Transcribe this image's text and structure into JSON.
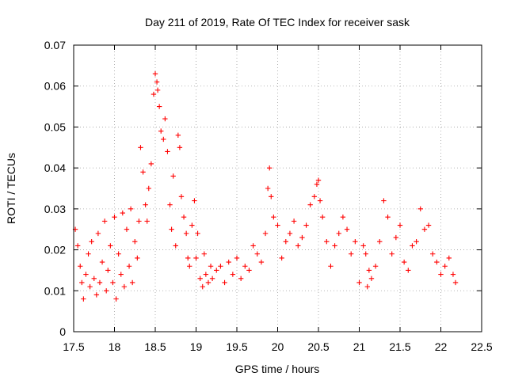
{
  "chart_data": {
    "type": "scatter",
    "title": "Day 211 of 2019, Rate Of TEC Index for receiver sask",
    "xlabel": "GPS time / hours",
    "ylabel": "ROTI / TECUs",
    "xlim": [
      17.5,
      22.5
    ],
    "ylim": [
      0,
      0.07
    ],
    "xticks": [
      "17.5",
      "18",
      "18.5",
      "19",
      "19.5",
      "20",
      "20.5",
      "21",
      "21.5",
      "22",
      "22.5"
    ],
    "yticks": [
      "0",
      "0.01",
      "0.02",
      "0.03",
      "0.04",
      "0.05",
      "0.06",
      "0.07"
    ],
    "grid": true,
    "marker": "+",
    "color": "#ff0000",
    "series": [
      {
        "name": "ROTI",
        "x": [
          17.52,
          17.55,
          17.58,
          17.6,
          17.62,
          17.65,
          17.68,
          17.7,
          17.72,
          17.75,
          17.78,
          17.8,
          17.82,
          17.85,
          17.88,
          17.9,
          17.92,
          17.95,
          17.98,
          18.0,
          18.02,
          18.05,
          18.08,
          18.1,
          18.12,
          18.15,
          18.18,
          18.2,
          18.22,
          18.25,
          18.28,
          18.3,
          18.32,
          18.35,
          18.38,
          18.4,
          18.42,
          18.45,
          18.48,
          18.5,
          18.52,
          18.53,
          18.55,
          18.57,
          18.6,
          18.62,
          18.65,
          18.68,
          18.7,
          18.72,
          18.75,
          18.78,
          18.8,
          18.82,
          18.85,
          18.88,
          18.9,
          18.92,
          18.95,
          18.98,
          19.0,
          19.02,
          19.05,
          19.08,
          19.1,
          19.12,
          19.15,
          19.18,
          19.2,
          19.25,
          19.3,
          19.35,
          19.4,
          19.45,
          19.5,
          19.55,
          19.6,
          19.65,
          19.7,
          19.75,
          19.8,
          19.85,
          19.88,
          19.9,
          19.92,
          19.95,
          20.0,
          20.05,
          20.1,
          20.15,
          20.2,
          20.25,
          20.3,
          20.35,
          20.4,
          20.45,
          20.48,
          20.5,
          20.52,
          20.55,
          20.6,
          20.65,
          20.7,
          20.75,
          20.8,
          20.85,
          20.9,
          20.95,
          21.0,
          21.05,
          21.08,
          21.1,
          21.12,
          21.15,
          21.2,
          21.25,
          21.3,
          21.35,
          21.4,
          21.45,
          21.5,
          21.55,
          21.6,
          21.65,
          21.7,
          21.75,
          21.8,
          21.85,
          21.9,
          21.95,
          22.0,
          22.05,
          22.1,
          22.15,
          22.18
        ],
        "y": [
          0.025,
          0.021,
          0.016,
          0.012,
          0.008,
          0.014,
          0.019,
          0.011,
          0.022,
          0.013,
          0.009,
          0.024,
          0.012,
          0.017,
          0.027,
          0.01,
          0.015,
          0.021,
          0.012,
          0.028,
          0.008,
          0.019,
          0.014,
          0.029,
          0.011,
          0.025,
          0.016,
          0.03,
          0.012,
          0.022,
          0.018,
          0.027,
          0.045,
          0.039,
          0.031,
          0.027,
          0.035,
          0.041,
          0.058,
          0.063,
          0.061,
          0.059,
          0.055,
          0.049,
          0.047,
          0.052,
          0.044,
          0.031,
          0.025,
          0.038,
          0.021,
          0.048,
          0.045,
          0.033,
          0.028,
          0.024,
          0.018,
          0.016,
          0.026,
          0.032,
          0.018,
          0.024,
          0.013,
          0.011,
          0.019,
          0.014,
          0.012,
          0.016,
          0.013,
          0.015,
          0.016,
          0.012,
          0.017,
          0.014,
          0.018,
          0.013,
          0.016,
          0.015,
          0.021,
          0.019,
          0.017,
          0.024,
          0.035,
          0.04,
          0.033,
          0.028,
          0.026,
          0.018,
          0.022,
          0.024,
          0.027,
          0.021,
          0.023,
          0.026,
          0.031,
          0.033,
          0.036,
          0.037,
          0.032,
          0.028,
          0.022,
          0.016,
          0.021,
          0.024,
          0.028,
          0.025,
          0.019,
          0.022,
          0.012,
          0.021,
          0.019,
          0.011,
          0.015,
          0.013,
          0.016,
          0.022,
          0.032,
          0.028,
          0.019,
          0.023,
          0.026,
          0.017,
          0.015,
          0.021,
          0.022,
          0.03,
          0.025,
          0.026,
          0.019,
          0.017,
          0.014,
          0.016,
          0.018,
          0.014,
          0.012
        ]
      }
    ]
  }
}
